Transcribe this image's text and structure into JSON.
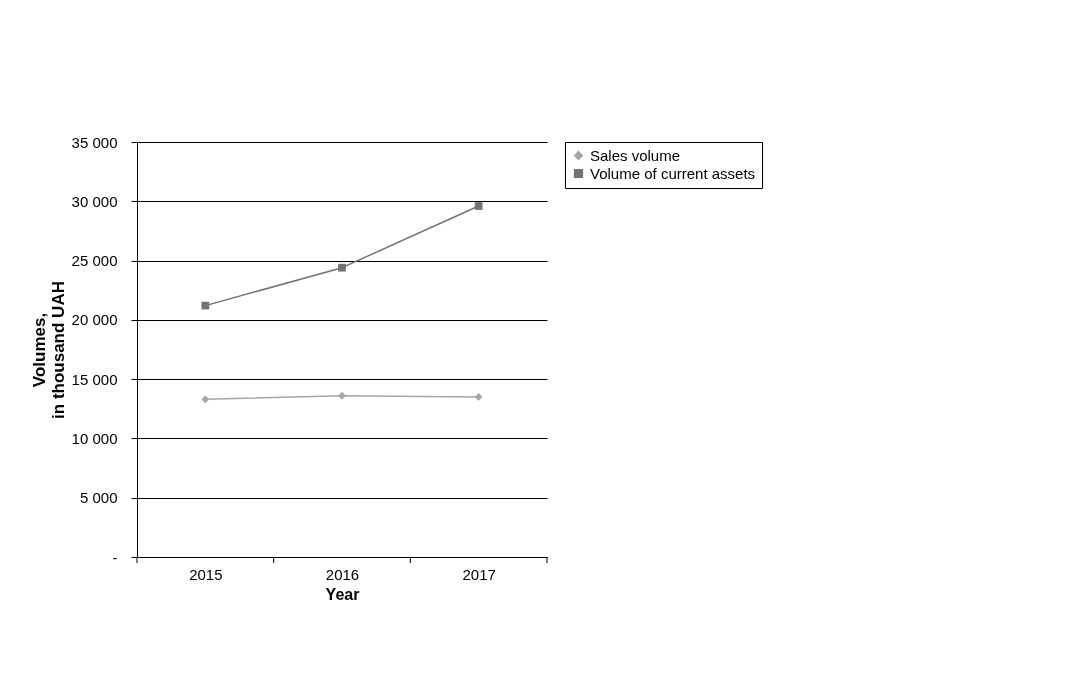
{
  "chart_data": {
    "type": "line",
    "xlabel": "Year",
    "ylabel": "Volumes,\nin thousand UAH",
    "categories": [
      "2015",
      "2016",
      "2017"
    ],
    "series": [
      {
        "name": "Sales volume",
        "color": "#a6a6a6",
        "marker": "diamond",
        "values": [
          13300,
          13600,
          13500
        ]
      },
      {
        "name": "Volume of current assets",
        "color": "#737373",
        "marker": "square",
        "values": [
          21200,
          24400,
          29600
        ]
      }
    ],
    "ylim": [
      0,
      35000
    ],
    "yticks": [
      {
        "value": 0,
        "label": "-"
      },
      {
        "value": 5000,
        "label": "5 000"
      },
      {
        "value": 10000,
        "label": "10 000"
      },
      {
        "value": 15000,
        "label": "15 000"
      },
      {
        "value": 20000,
        "label": "20 000"
      },
      {
        "value": 25000,
        "label": "25 000"
      },
      {
        "value": 30000,
        "label": "30 000"
      },
      {
        "value": 35000,
        "label": "35 000"
      }
    ],
    "grid": "y",
    "legend": "right",
    "line_style": "solid"
  }
}
